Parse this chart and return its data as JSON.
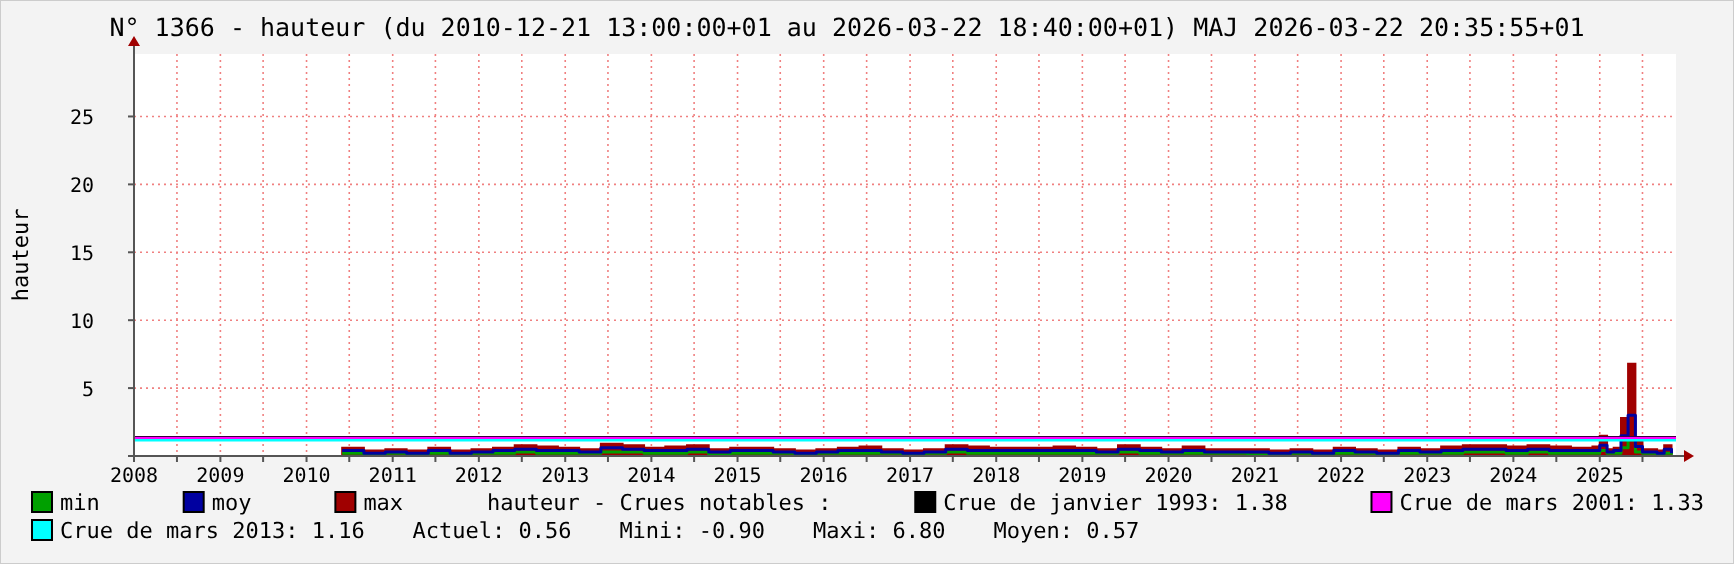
{
  "chart_data": {
    "type": "line",
    "title": "N° 1366 - hauteur (du 2010-12-21 13:00:00+01 au 2026-03-22 18:40:00+01) MAJ 2026-03-22 20:35:55+01",
    "ylabel": "hauteur",
    "x": [
      "2010-06",
      "2010-09",
      "2010-12",
      "2011-03",
      "2011-06",
      "2011-09",
      "2011-12",
      "2012-03",
      "2012-06",
      "2012-09",
      "2012-12",
      "2013-03",
      "2013-06",
      "2013-09",
      "2013-12",
      "2014-03",
      "2014-06",
      "2014-09",
      "2014-12",
      "2015-03",
      "2015-06",
      "2015-09",
      "2015-12",
      "2016-03",
      "2016-06",
      "2016-09",
      "2016-12",
      "2017-03",
      "2017-06",
      "2017-09",
      "2017-12",
      "2018-03",
      "2018-06",
      "2018-09",
      "2018-12",
      "2019-03",
      "2019-06",
      "2019-09",
      "2019-12",
      "2020-03",
      "2020-06",
      "2020-09",
      "2020-12",
      "2021-03",
      "2021-06",
      "2021-09",
      "2021-12",
      "2022-03",
      "2022-06",
      "2022-09",
      "2022-12",
      "2023-03",
      "2023-06",
      "2023-09",
      "2023-12",
      "2024-03",
      "2024-06",
      "2024-09",
      "2024-12",
      "2025-01",
      "2025-02",
      "2025-03",
      "2025-04",
      "2025-05",
      "2025-06",
      "2025-07",
      "2025-09",
      "2025-10",
      "2025-11"
    ],
    "series": [
      {
        "name": "min",
        "color": "#00a000",
        "values": [
          0.2,
          0.1,
          0.2,
          0.1,
          0.2,
          0.1,
          0.2,
          0.2,
          0.3,
          0.2,
          0.2,
          0.2,
          0.3,
          0.3,
          0.2,
          0.2,
          0.3,
          0.1,
          0.2,
          0.2,
          0.2,
          0.1,
          0.2,
          0.2,
          0.2,
          0.2,
          0.1,
          0.2,
          0.3,
          0.2,
          0.2,
          0.2,
          0.2,
          0.2,
          0.2,
          0.2,
          0.3,
          0.2,
          0.2,
          0.2,
          0.2,
          0.2,
          0.1,
          0.1,
          0.2,
          0.1,
          0.2,
          0.2,
          0.1,
          0.2,
          0.2,
          0.2,
          0.3,
          0.3,
          0.2,
          0.3,
          0.2,
          0.2,
          0.2,
          0.4,
          0.2,
          0.2,
          0.6,
          1.2,
          0.3,
          0.2,
          0.1,
          0.2,
          0.1
        ]
      },
      {
        "name": "moy",
        "color": "#0000a0",
        "values": [
          0.4,
          0.2,
          0.3,
          0.2,
          0.4,
          0.2,
          0.3,
          0.4,
          0.5,
          0.4,
          0.4,
          0.3,
          0.6,
          0.5,
          0.4,
          0.4,
          0.5,
          0.3,
          0.4,
          0.4,
          0.3,
          0.2,
          0.3,
          0.4,
          0.4,
          0.3,
          0.2,
          0.3,
          0.5,
          0.4,
          0.4,
          0.4,
          0.4,
          0.4,
          0.4,
          0.3,
          0.5,
          0.4,
          0.3,
          0.4,
          0.3,
          0.3,
          0.3,
          0.2,
          0.3,
          0.2,
          0.4,
          0.3,
          0.2,
          0.4,
          0.3,
          0.4,
          0.5,
          0.5,
          0.4,
          0.5,
          0.4,
          0.4,
          0.4,
          0.8,
          0.3,
          0.4,
          1.5,
          3.0,
          0.7,
          0.3,
          0.2,
          0.5,
          0.2
        ]
      },
      {
        "name": "max",
        "color": "#a00000",
        "type": "area",
        "values": [
          0.6,
          0.4,
          0.5,
          0.4,
          0.6,
          0.4,
          0.5,
          0.6,
          0.8,
          0.7,
          0.6,
          0.5,
          0.9,
          0.8,
          0.6,
          0.7,
          0.8,
          0.5,
          0.6,
          0.6,
          0.5,
          0.4,
          0.5,
          0.6,
          0.7,
          0.5,
          0.4,
          0.5,
          0.8,
          0.7,
          0.6,
          0.6,
          0.6,
          0.7,
          0.6,
          0.5,
          0.8,
          0.6,
          0.5,
          0.7,
          0.5,
          0.5,
          0.5,
          0.4,
          0.5,
          0.4,
          0.6,
          0.5,
          0.4,
          0.6,
          0.5,
          0.7,
          0.8,
          0.8,
          0.7,
          0.8,
          0.7,
          0.6,
          0.7,
          1.5,
          0.5,
          0.6,
          2.8,
          6.8,
          1.2,
          0.5,
          0.4,
          0.8,
          0.4
        ]
      }
    ],
    "ref_lines": [
      {
        "axis": "y",
        "value": 1.38,
        "label": "Crue de janvier 1993: 1.38",
        "color": "#000000"
      },
      {
        "axis": "y",
        "value": 1.33,
        "label": "Crue de mars 2001: 1.33",
        "color": "#ff00ff"
      },
      {
        "axis": "y",
        "value": 1.16,
        "label": "Crue de mars 2013: 1.16",
        "color": "#00ffff"
      }
    ],
    "annotations": [
      "hauteur - Crues notables :",
      "Actuel: 0.56",
      "Mini: -0.90",
      "Maxi: 6.80",
      "Moyen: 0.57"
    ],
    "xlim": [
      "2008-01-01",
      "2025-11-20"
    ],
    "xticks": [
      {
        "value": "2008",
        "label": "2008"
      },
      {
        "value": "2008-07",
        "label": null
      },
      {
        "value": "2009",
        "label": "2009"
      },
      {
        "value": "2009-07",
        "label": null
      },
      {
        "value": "2010",
        "label": "2010"
      },
      {
        "value": "2010-07",
        "label": null
      },
      {
        "value": "2011",
        "label": "2011"
      },
      {
        "value": "2011-07",
        "label": null
      },
      {
        "value": "2012",
        "label": "2012"
      },
      {
        "value": "2012-07",
        "label": null
      },
      {
        "value": "2013",
        "label": "2013"
      },
      {
        "value": "2013-07",
        "label": null
      },
      {
        "value": "2014",
        "label": "2014"
      },
      {
        "value": "2014-07",
        "label": null
      },
      {
        "value": "2015",
        "label": "2015"
      },
      {
        "value": "2015-07",
        "label": null
      },
      {
        "value": "2016",
        "label": "2016"
      },
      {
        "value": "2016-07",
        "label": null
      },
      {
        "value": "2017",
        "label": "2017"
      },
      {
        "value": "2017-07",
        "label": null
      },
      {
        "value": "2018",
        "label": "2018"
      },
      {
        "value": "2018-07",
        "label": null
      },
      {
        "value": "2019",
        "label": "2019"
      },
      {
        "value": "2019-07",
        "label": null
      },
      {
        "value": "2020",
        "label": "2020"
      },
      {
        "value": "2020-07",
        "label": null
      },
      {
        "value": "2021",
        "label": "2021"
      },
      {
        "value": "2021-07",
        "label": null
      },
      {
        "value": "2022",
        "label": "2022"
      },
      {
        "value": "2022-07",
        "label": null
      },
      {
        "value": "2023",
        "label": "2023"
      },
      {
        "value": "2023-07",
        "label": null
      },
      {
        "value": "2024",
        "label": "2024"
      },
      {
        "value": "2024-07",
        "label": null
      },
      {
        "value": "2025",
        "label": "2025"
      },
      {
        "value": "2025-07",
        "label": null
      }
    ],
    "ylim": [
      0,
      29.6
    ],
    "yticks": [
      {
        "value": 0,
        "label": null
      },
      5,
      10,
      15,
      20,
      25
    ],
    "grid": true,
    "legend": "bottom"
  }
}
